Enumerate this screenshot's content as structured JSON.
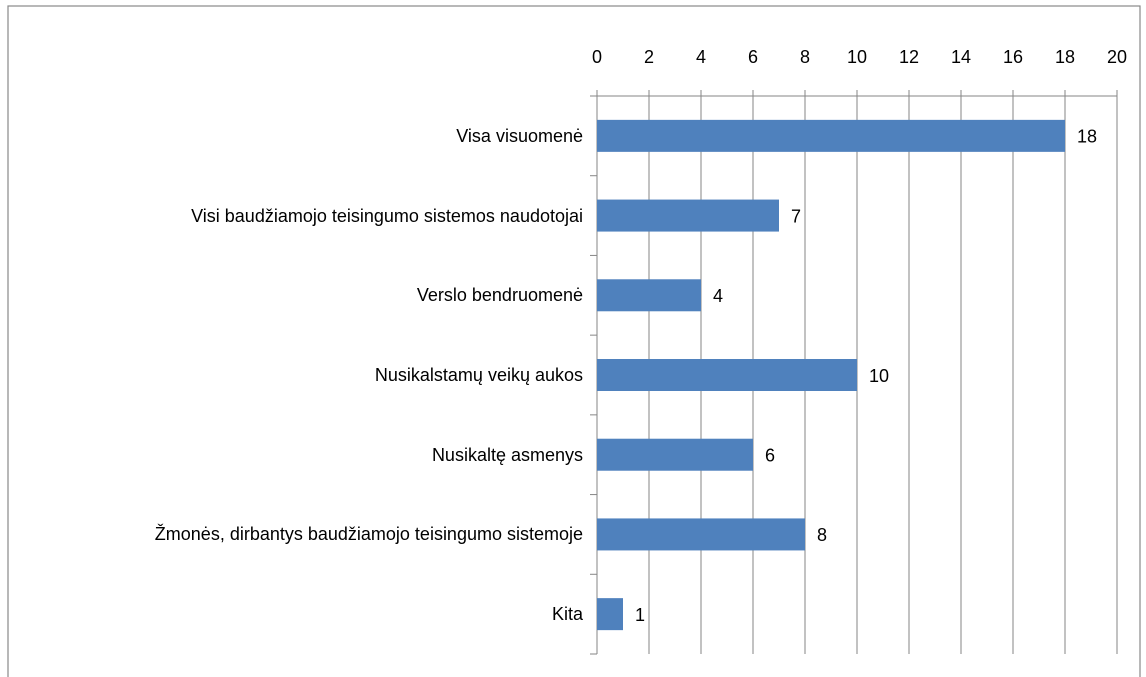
{
  "chart_data": {
    "type": "barh",
    "categories": [
      "Visa visuomenė",
      "Visi baudžiamojo teisingumo sistemos naudotojai",
      "Verslo bendruomenė",
      "Nusikalstamų veikų aukos",
      "Nusikaltę asmenys",
      "Žmonės, dirbantys baudžiamojo teisingumo sistemoje",
      "Kita"
    ],
    "values": [
      18,
      7,
      4,
      10,
      6,
      8,
      1
    ],
    "color": "#4f81bd",
    "xlim": [
      0,
      20
    ],
    "xticks": [
      0,
      2,
      4,
      6,
      8,
      10,
      12,
      14,
      16,
      18,
      20
    ],
    "grid": true
  }
}
